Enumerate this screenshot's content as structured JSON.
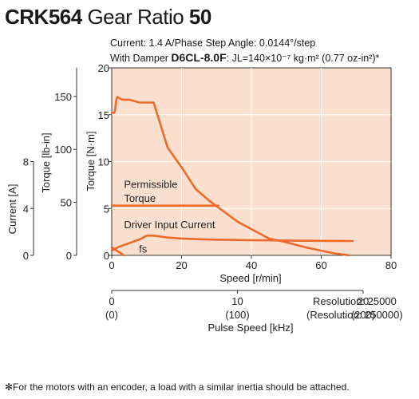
{
  "header": {
    "model": "CRK564",
    "gear_label": "Gear Ratio",
    "gear_value": "50",
    "condition_line1": "Current: 1.4 A/Phase  Step Angle: 0.0144°/step",
    "condition_line2_prefix": "With Damper ",
    "damper_model": "D6CL-8.0F",
    "condition_line2_suffix": ": JL=140×10⁻⁷ kg·m² (0.77 oz-in²)*"
  },
  "footnote": "✻For the motors with an encoder, a load with a similar inertia should be attached.",
  "colors": {
    "plot_bg": "#fbe0cf",
    "curve": "#ee6a2a",
    "grid": "#ffffff",
    "axis": "#333333"
  },
  "chart_data": {
    "type": "line",
    "xlabel": "Speed [r/min]",
    "xlim": [
      0,
      80
    ],
    "x_ticks": [
      0,
      20,
      40,
      60,
      80
    ],
    "ylabel": "Torque [N·m]",
    "ylim": [
      0,
      20
    ],
    "y_ticks": [
      0,
      5,
      10,
      15,
      20
    ],
    "lbin_axis": {
      "label": "Torque [lb-in]",
      "ticks": [
        0,
        50,
        100,
        150
      ]
    },
    "current_axis": {
      "label": "Current [A]",
      "ticks": [
        0,
        4,
        8
      ]
    },
    "pulse_axis": {
      "label": "Pulse Speed [kHz]",
      "ticks": [
        {
          "value": "0",
          "alt": "(0)"
        },
        {
          "value": "10",
          "alt": "(100)"
        },
        {
          "value": "20",
          "alt": "(200)"
        }
      ],
      "resolution_1": "Resolution: 25000",
      "resolution_2": "(Resolution: 250000)"
    },
    "series": [
      {
        "name": "Driver Input Current",
        "x": [
          0,
          2,
          5,
          8,
          10,
          12,
          14,
          16,
          20,
          25,
          30,
          35,
          40,
          45,
          50,
          55,
          60,
          65,
          69
        ],
        "y": [
          0.5,
          0.9,
          1.3,
          1.7,
          2.1,
          2.1,
          2.0,
          1.9,
          1.8,
          1.72,
          1.68,
          1.65,
          1.62,
          1.6,
          1.58,
          1.56,
          1.55,
          1.54,
          1.53
        ]
      },
      {
        "name": "Driver Input Current - 1",
        "x": [
          0,
          0.3,
          0.7,
          1.0,
          1.3,
          1.6,
          2.0,
          3,
          5,
          8,
          10,
          12,
          16,
          20,
          24,
          28,
          32,
          36,
          40,
          45,
          50,
          55,
          60,
          64,
          68
        ],
        "y": [
          15.2,
          15.2,
          15.2,
          15.6,
          16.6,
          16.9,
          16.8,
          16.6,
          16.6,
          16.3,
          16.3,
          16.3,
          11.5,
          9.4,
          7.1,
          5.8,
          4.7,
          3.6,
          2.8,
          1.8,
          1.4,
          0.9,
          0.5,
          0.2,
          0
        ]
      },
      {
        "name": "Permissible Torque",
        "x": [
          0,
          30.5
        ],
        "y": [
          5.3,
          5.3
        ]
      },
      {
        "name": "fs",
        "x": [
          0,
          3.5
        ],
        "y": [
          0.85,
          0
        ]
      }
    ],
    "annotations": [
      {
        "text": "Permissible",
        "x": 3.5,
        "y": 7.2
      },
      {
        "text": "Torque",
        "x": 3.5,
        "y": 5.7
      },
      {
        "text": "Driver Input Current",
        "x": 3.5,
        "y": 2.9
      },
      {
        "text": "fs",
        "x": 7.8,
        "y": 0.3
      }
    ]
  }
}
